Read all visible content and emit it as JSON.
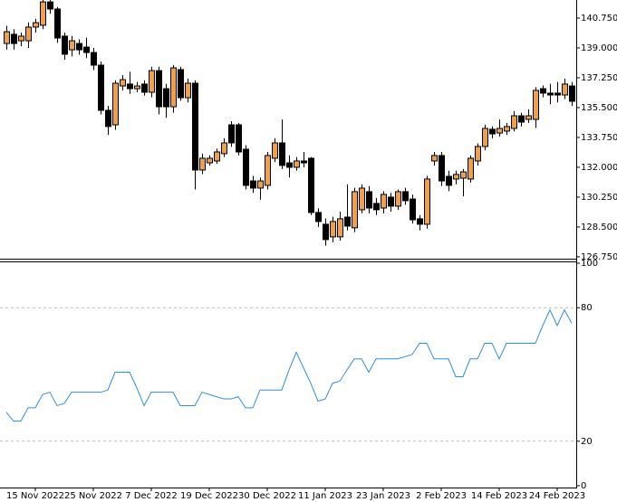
{
  "chart_data": [
    {
      "type": "candlestick",
      "categories": [
        null,
        null,
        null,
        null,
        "15 Nov 2022",
        null,
        null,
        null,
        null,
        null,
        null,
        null,
        "25 Nov 2022",
        null,
        null,
        null,
        null,
        null,
        null,
        null,
        "7 Dec 2022",
        null,
        null,
        null,
        null,
        null,
        null,
        null,
        "19 Dec 2022",
        null,
        null,
        null,
        null,
        null,
        null,
        null,
        "30 Dec 2022",
        null,
        null,
        null,
        null,
        null,
        null,
        null,
        "11 Jan 2023",
        null,
        null,
        null,
        null,
        null,
        null,
        null,
        "23 Jan 2023",
        null,
        null,
        null,
        null,
        null,
        null,
        null,
        "2 Feb 2023",
        null,
        null,
        null,
        null,
        null,
        null,
        null,
        "14 Feb 2023",
        null,
        null,
        null,
        null,
        null,
        null,
        null,
        "24 Feb 2023",
        null,
        null
      ],
      "open": [
        139.26,
        139.8,
        139.42,
        139.42,
        140.22,
        140.33,
        141.7,
        141.28,
        139.69,
        138.89,
        139.26,
        139.05,
        138.73,
        137.99,
        135.34,
        134.49,
        136.77,
        136.88,
        136.61,
        136.88,
        136.4,
        137.67,
        136.61,
        135.55,
        137.73,
        136.08,
        136.93,
        131.84,
        132.26,
        132.37,
        132.8,
        134.49,
        134.49,
        133.06,
        131.2,
        130.78,
        130.94,
        132.53,
        133.43,
        132.26,
        132.0,
        132.37,
        132.53,
        129.35,
        128.66,
        127.92,
        127.92,
        129.08,
        128.45,
        129.51,
        130.57,
        129.88,
        129.61,
        130.25,
        129.72,
        130.57,
        130.14,
        128.98,
        128.66,
        132.37,
        132.69,
        131.47,
        131.31,
        131.36,
        131.31,
        132.37,
        133.22,
        134.23,
        134.01,
        134.12,
        134.28,
        135.02,
        134.81,
        134.81,
        136.61,
        136.35,
        136.35,
        136.24,
        136.77
      ],
      "high": [
        140.3,
        140.1,
        139.9,
        140.5,
        140.7,
        141.81,
        141.81,
        141.4,
        139.9,
        139.7,
        139.5,
        139.6,
        139.0,
        138.2,
        135.6,
        137.1,
        137.4,
        137.6,
        137.0,
        137.1,
        137.9,
        137.9,
        136.9,
        138.0,
        137.9,
        137.2,
        137.1,
        132.8,
        132.7,
        133.1,
        133.7,
        134.7,
        134.6,
        133.3,
        131.5,
        131.4,
        132.9,
        133.7,
        134.8,
        132.7,
        132.6,
        132.9,
        132.6,
        129.6,
        129.0,
        129.1,
        129.4,
        131.0,
        130.8,
        131.0,
        130.9,
        130.2,
        130.6,
        130.5,
        130.7,
        130.8,
        130.4,
        129.2,
        131.5,
        132.9,
        132.9,
        131.8,
        131.8,
        131.9,
        132.7,
        133.4,
        134.5,
        134.4,
        134.8,
        134.6,
        135.3,
        135.2,
        135.4,
        136.7,
        136.8,
        136.9,
        137.0,
        137.2,
        137.0
      ],
      "low": [
        138.9,
        138.9,
        139.1,
        139.0,
        139.9,
        140.1,
        141.0,
        139.3,
        138.3,
        138.5,
        138.6,
        138.4,
        137.7,
        135.1,
        133.9,
        134.2,
        136.5,
        136.3,
        136.4,
        136.2,
        136.1,
        135.1,
        134.9,
        135.2,
        135.9,
        135.8,
        130.7,
        131.6,
        132.1,
        132.2,
        132.6,
        133.2,
        132.7,
        130.7,
        130.5,
        130.1,
        130.7,
        132.3,
        131.9,
        131.4,
        131.8,
        132.0,
        129.2,
        128.5,
        127.4,
        127.6,
        127.7,
        128.3,
        128.2,
        129.3,
        129.3,
        129.2,
        129.3,
        129.4,
        129.5,
        129.8,
        128.7,
        128.3,
        128.4,
        132.1,
        130.9,
        130.6,
        131.0,
        130.3,
        131.1,
        132.1,
        133.0,
        133.7,
        133.8,
        133.9,
        134.1,
        134.4,
        134.6,
        134.3,
        136.1,
        135.7,
        135.8,
        136.0,
        135.6
      ],
      "close": [
        139.95,
        139.26,
        139.69,
        140.22,
        140.48,
        141.7,
        141.28,
        139.58,
        138.63,
        139.42,
        138.89,
        138.73,
        137.99,
        135.34,
        134.39,
        136.93,
        137.14,
        136.61,
        136.77,
        136.4,
        137.67,
        135.55,
        135.55,
        137.83,
        136.08,
        136.93,
        131.84,
        132.53,
        132.53,
        132.9,
        133.43,
        133.43,
        132.9,
        130.94,
        130.78,
        131.2,
        132.69,
        133.43,
        132.11,
        132.0,
        132.37,
        132.26,
        129.35,
        128.82,
        127.76,
        128.82,
        128.98,
        128.55,
        130.57,
        130.78,
        129.61,
        129.51,
        130.41,
        129.72,
        130.57,
        130.04,
        128.92,
        128.66,
        131.31,
        132.69,
        131.2,
        130.94,
        131.58,
        131.73,
        132.53,
        133.22,
        134.28,
        133.96,
        134.28,
        134.39,
        135.02,
        134.65,
        135.02,
        136.51,
        136.35,
        136.24,
        136.24,
        136.88,
        135.87
      ],
      "up_color": "#f0a04b",
      "down_color": "#000000",
      "ylim": [
        126.64,
        141.81
      ],
      "yticks": [
        {
          "value": 126.75,
          "label": "126.750"
        },
        {
          "value": 128.5,
          "label": "128.500"
        },
        {
          "value": 130.25,
          "label": "130.250"
        },
        {
          "value": 132,
          "label": "132.000"
        },
        {
          "value": 133.75,
          "label": "133.750"
        },
        {
          "value": 135.5,
          "label": "135.500"
        },
        {
          "value": 137.25,
          "label": "137.250"
        },
        {
          "value": 139,
          "label": "139.000"
        },
        {
          "value": 140.75,
          "label": "140.750"
        }
      ]
    },
    {
      "type": "line",
      "values": [
        33,
        29,
        29,
        35,
        35,
        41,
        42,
        36,
        37,
        42,
        42,
        42,
        42,
        42,
        43,
        51,
        51,
        51,
        44,
        36,
        42,
        42,
        42,
        42,
        36,
        36,
        36,
        42,
        41,
        40,
        39,
        39,
        40,
        35,
        35,
        43,
        43,
        43,
        43,
        52,
        60,
        53,
        46,
        38,
        39,
        46,
        47,
        52,
        57,
        57,
        51,
        57,
        57,
        57,
        57,
        58,
        59,
        64,
        64,
        57,
        57,
        57,
        49,
        49,
        57,
        57,
        64,
        64,
        57,
        64,
        64,
        64,
        64,
        64,
        72,
        79,
        72,
        79,
        73
      ],
      "color": "#2f8fe0",
      "ylim": [
        0,
        100
      ],
      "yticks": [
        0,
        20,
        80,
        100
      ],
      "grid": "dashed"
    }
  ]
}
